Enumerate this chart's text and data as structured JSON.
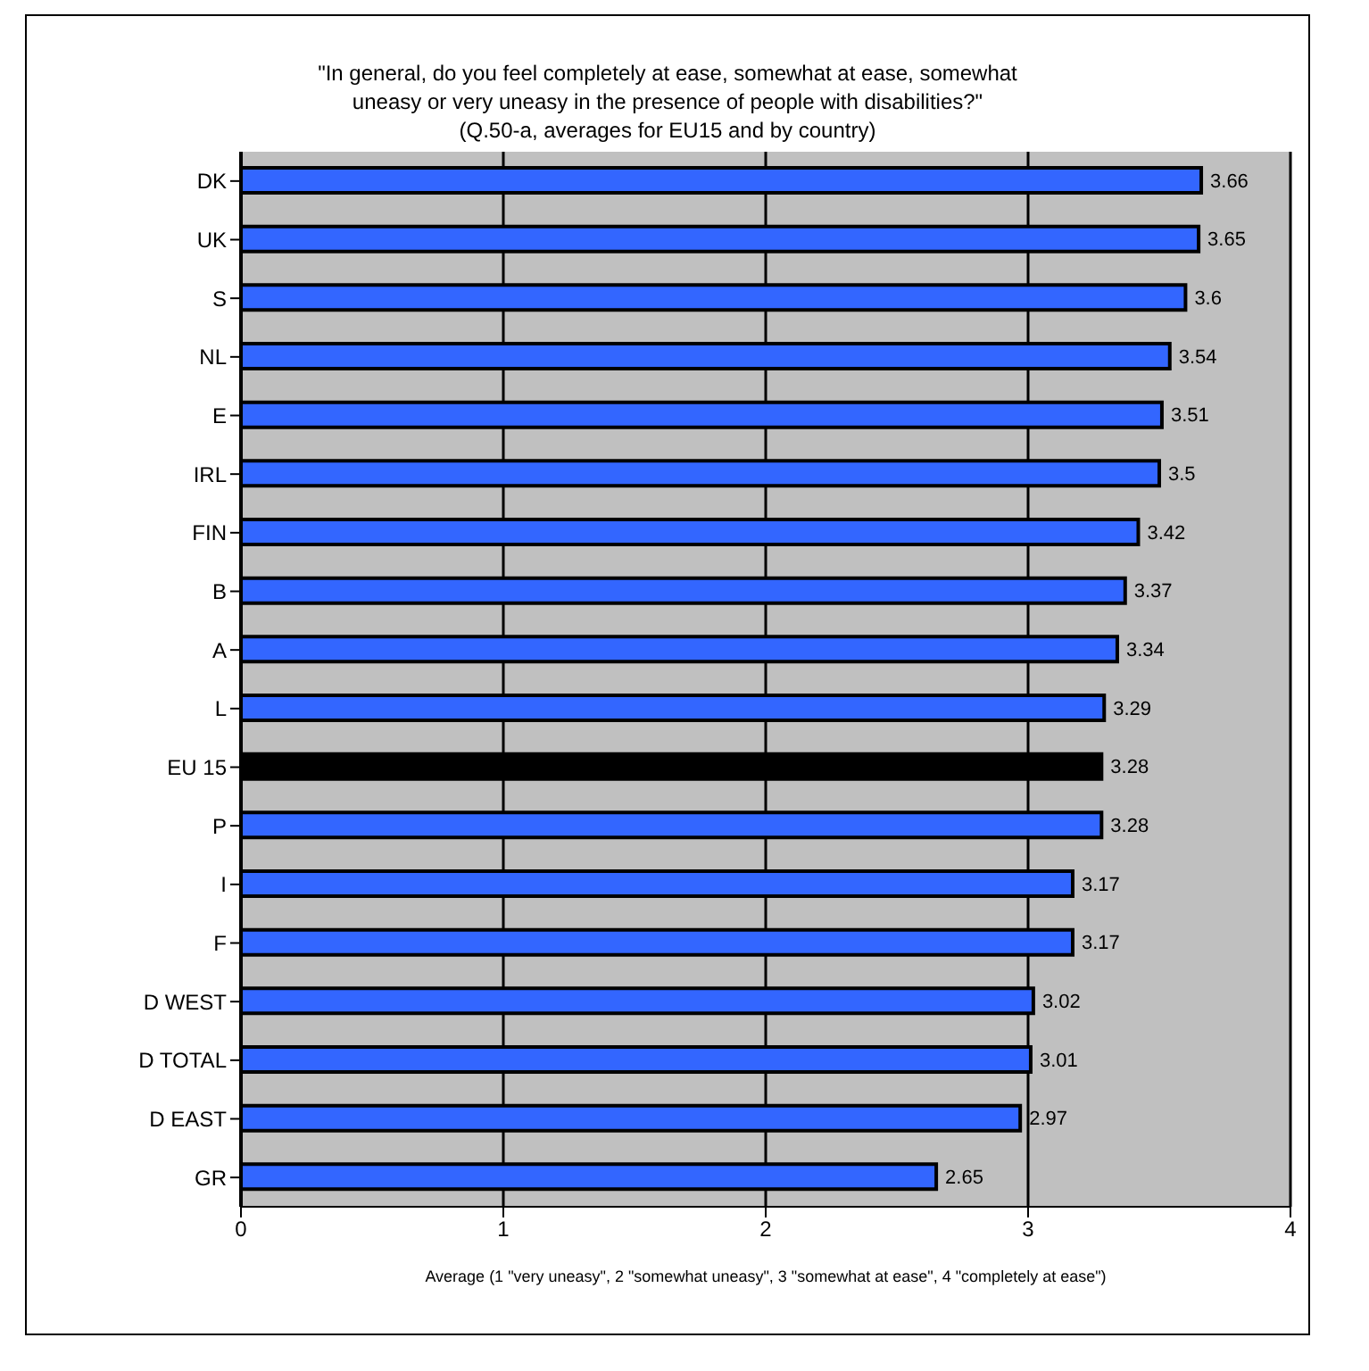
{
  "chart_data": {
    "type": "bar",
    "orientation": "horizontal",
    "title": "\"In general, do you feel completely at ease, somewhat at ease, somewhat uneasy or very uneasy in the presence of people with disabilities?\"",
    "subtitle": "(Q.50-a, averages for EU15 and by country)",
    "xlabel": "Average (1 \"very uneasy\", 2 \"somewhat uneasy\", 3 \"somewhat at ease\", 4 \"completely at ease\")",
    "categories": [
      "DK",
      "UK",
      "S",
      "NL",
      "E",
      "IRL",
      "FIN",
      "B",
      "A",
      "L",
      "EU 15",
      "P",
      "I",
      "F",
      "D WEST",
      "D TOTAL",
      "D EAST",
      "GR"
    ],
    "values": [
      3.66,
      3.65,
      3.6,
      3.54,
      3.51,
      3.5,
      3.42,
      3.37,
      3.34,
      3.29,
      3.28,
      3.28,
      3.17,
      3.17,
      3.02,
      3.01,
      2.97,
      2.65
    ],
    "colors": [
      "#3366ff",
      "#3366ff",
      "#3366ff",
      "#3366ff",
      "#3366ff",
      "#3366ff",
      "#3366ff",
      "#3366ff",
      "#3366ff",
      "#3366ff",
      "#000000",
      "#3366ff",
      "#3366ff",
      "#3366ff",
      "#3366ff",
      "#3366ff",
      "#3366ff",
      "#3366ff"
    ],
    "xlim": [
      0,
      4
    ],
    "xticks": [
      0,
      1,
      2,
      3,
      4
    ],
    "grid": "x",
    "data_labels": true
  }
}
